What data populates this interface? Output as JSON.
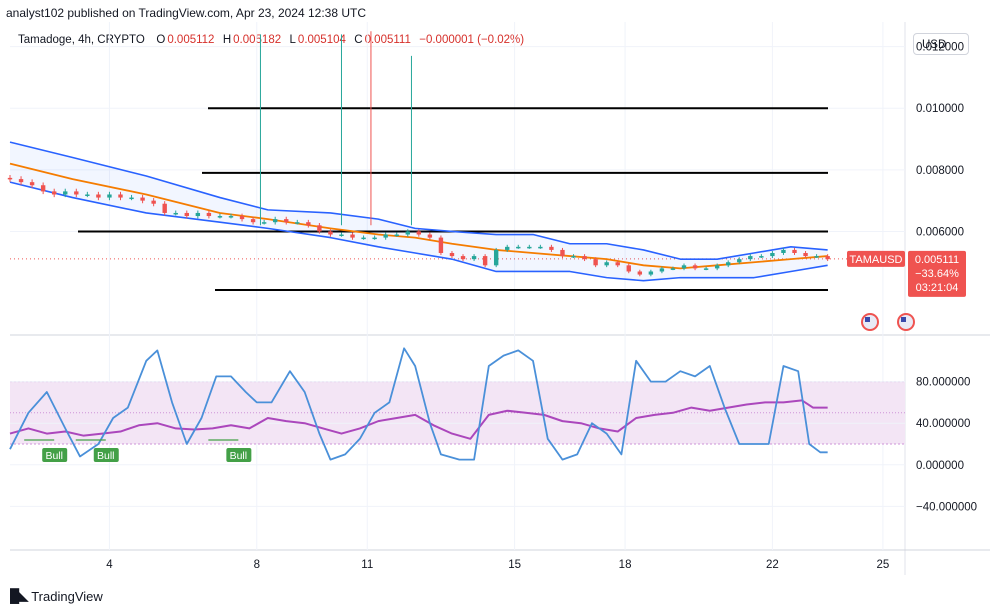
{
  "header": {
    "published": "analyst102 published on TradingView.com, Apr 23, 2024 12:38 UTC",
    "symbol": "Tamadoge, 4h, CRYPTO",
    "o_label": "O",
    "o_value": "0.005112",
    "h_label": "H",
    "h_value": "0.005182",
    "l_label": "L",
    "l_value": "0.005104",
    "c_label": "C",
    "c_value": "0.005111",
    "change": "−0.000001 (−0.02%)"
  },
  "currency_button": "USD",
  "price_tag": {
    "symbol": "TAMAUSD",
    "price": "0.005111",
    "change_pct": "−33.64%",
    "countdown": "03:21:04"
  },
  "footer": {
    "brand": "TradingView"
  },
  "colors": {
    "up": "#26a69a",
    "down": "#ef5350",
    "bb": "#2962ff",
    "ma": "#f57c00",
    "k": "#4a90d9",
    "d": "#ab47bc",
    "band_fill": "#f3e5f5"
  },
  "chart_data": [
    {
      "type": "candlestick",
      "title": "Tamadoge, 4h, CRYPTO",
      "y_axis_ticks": [
        "0.012000",
        "0.010000",
        "0.008000",
        "0.006000"
      ],
      "ylim": [
        0.0028,
        0.0128
      ],
      "x_tick_labels": [
        "4",
        "8",
        "11",
        "15",
        "18",
        "22",
        "25"
      ],
      "x_tick_days": [
        4,
        8,
        11,
        15,
        18,
        22,
        25
      ],
      "x_range_days": [
        1.3,
        25.6
      ],
      "horizontal_levels": [
        0.01,
        0.0079,
        0.006,
        0.0041
      ],
      "last_close": 0.005111,
      "grid": true,
      "bollinger": {
        "upper": [
          [
            1.3,
            0.0089
          ],
          [
            3,
            0.0084
          ],
          [
            5,
            0.0078
          ],
          [
            7,
            0.0071
          ],
          [
            8.3,
            0.0067
          ],
          [
            10,
            0.0066
          ],
          [
            11.3,
            0.0064
          ],
          [
            12.3,
            0.0061
          ],
          [
            13.3,
            0.006
          ],
          [
            14.5,
            0.0059
          ],
          [
            15.5,
            0.0059
          ],
          [
            16.5,
            0.0056
          ],
          [
            17.5,
            0.0056
          ],
          [
            18.5,
            0.0054
          ],
          [
            19.5,
            0.0051
          ],
          [
            20.5,
            0.0051
          ],
          [
            21.5,
            0.0053
          ],
          [
            22.5,
            0.0055
          ],
          [
            23.5,
            0.0054
          ]
        ],
        "middle": [
          [
            1.3,
            0.0082
          ],
          [
            3,
            0.0077
          ],
          [
            5,
            0.0072
          ],
          [
            7,
            0.0066
          ],
          [
            8.3,
            0.0064
          ],
          [
            10,
            0.0061
          ],
          [
            11.3,
            0.0059
          ],
          [
            12.3,
            0.0058
          ],
          [
            13.3,
            0.0056
          ],
          [
            14.5,
            0.0054
          ],
          [
            15.5,
            0.0053
          ],
          [
            16.5,
            0.0052
          ],
          [
            17.5,
            0.0051
          ],
          [
            18.5,
            0.0049
          ],
          [
            19.5,
            0.0048
          ],
          [
            20.5,
            0.0049
          ],
          [
            21.5,
            0.005
          ],
          [
            22.5,
            0.0051
          ],
          [
            23.5,
            0.0052
          ]
        ],
        "lower": [
          [
            1.3,
            0.0076
          ],
          [
            3,
            0.0071
          ],
          [
            5,
            0.0066
          ],
          [
            7,
            0.0063
          ],
          [
            8.3,
            0.0061
          ],
          [
            10,
            0.0058
          ],
          [
            11.3,
            0.0055
          ],
          [
            12.3,
            0.0053
          ],
          [
            13.3,
            0.0051
          ],
          [
            14.5,
            0.0047
          ],
          [
            15.5,
            0.0047
          ],
          [
            16.5,
            0.0047
          ],
          [
            17.5,
            0.0045
          ],
          [
            18.5,
            0.0044
          ],
          [
            19.5,
            0.0045
          ],
          [
            20.5,
            0.0045
          ],
          [
            21.5,
            0.0045
          ],
          [
            22.5,
            0.0047
          ],
          [
            23.5,
            0.0049
          ]
        ]
      },
      "closes": [
        [
          1.3,
          0.0077
        ],
        [
          1.6,
          0.0076
        ],
        [
          1.9,
          0.0075
        ],
        [
          2.2,
          0.0073
        ],
        [
          2.5,
          0.0072
        ],
        [
          2.8,
          0.0073
        ],
        [
          3.1,
          0.0072
        ],
        [
          3.4,
          0.0072
        ],
        [
          3.7,
          0.0071
        ],
        [
          4.0,
          0.0072
        ],
        [
          4.3,
          0.0071
        ],
        [
          4.6,
          0.0071
        ],
        [
          4.9,
          0.007
        ],
        [
          5.2,
          0.0069
        ],
        [
          5.5,
          0.0066
        ],
        [
          5.8,
          0.0066
        ],
        [
          6.1,
          0.0065
        ],
        [
          6.4,
          0.0066
        ],
        [
          6.7,
          0.0065
        ],
        [
          7.0,
          0.0065
        ],
        [
          7.3,
          0.0065
        ],
        [
          7.6,
          0.0064
        ],
        [
          7.9,
          0.0063
        ],
        [
          8.2,
          0.0063
        ],
        [
          8.5,
          0.0064
        ],
        [
          8.8,
          0.0063
        ],
        [
          9.1,
          0.0063
        ],
        [
          9.4,
          0.0062
        ],
        [
          9.7,
          0.006
        ],
        [
          10.0,
          0.0059
        ],
        [
          10.3,
          0.0059
        ],
        [
          10.6,
          0.0058
        ],
        [
          10.9,
          0.0058
        ],
        [
          11.2,
          0.0058
        ],
        [
          11.5,
          0.0059
        ],
        [
          11.8,
          0.0059
        ],
        [
          12.1,
          0.006
        ],
        [
          12.4,
          0.0059
        ],
        [
          12.7,
          0.0058
        ],
        [
          13.0,
          0.0053
        ],
        [
          13.3,
          0.0052
        ],
        [
          13.6,
          0.0051
        ],
        [
          13.9,
          0.0052
        ],
        [
          14.2,
          0.0049
        ],
        [
          14.5,
          0.0054
        ],
        [
          14.8,
          0.0055
        ],
        [
          15.1,
          0.0055
        ],
        [
          15.4,
          0.0055
        ],
        [
          15.7,
          0.0055
        ],
        [
          16.0,
          0.0054
        ],
        [
          16.3,
          0.0052
        ],
        [
          16.6,
          0.0052
        ],
        [
          16.9,
          0.0051
        ],
        [
          17.2,
          0.0049
        ],
        [
          17.5,
          0.005
        ],
        [
          17.8,
          0.0049
        ],
        [
          18.1,
          0.0047
        ],
        [
          18.4,
          0.0046
        ],
        [
          18.7,
          0.0047
        ],
        [
          19.0,
          0.0048
        ],
        [
          19.3,
          0.0048
        ],
        [
          19.6,
          0.0049
        ],
        [
          19.9,
          0.0048
        ],
        [
          20.2,
          0.0048
        ],
        [
          20.5,
          0.0049
        ],
        [
          20.8,
          0.005
        ],
        [
          21.1,
          0.0051
        ],
        [
          21.4,
          0.0052
        ],
        [
          21.7,
          0.0052
        ],
        [
          22.0,
          0.0053
        ],
        [
          22.3,
          0.0054
        ],
        [
          22.6,
          0.0053
        ],
        [
          22.9,
          0.0052
        ],
        [
          23.2,
          0.0052
        ],
        [
          23.5,
          0.0051
        ]
      ],
      "wicks": [
        {
          "day": 8.1,
          "high": 0.0124,
          "color": "up"
        },
        {
          "day": 10.3,
          "high": 0.0124,
          "color": "up"
        },
        {
          "day": 11.1,
          "high": 0.0125,
          "color": "down"
        },
        {
          "day": 12.2,
          "high": 0.0117,
          "color": "up"
        }
      ]
    },
    {
      "type": "line",
      "title": "Stochastic RSI / RSI",
      "y_axis_ticks": [
        "80.000000",
        "40.000000",
        "0.000000",
        "−40.000000"
      ],
      "ylim": [
        -80,
        120
      ],
      "band": [
        20,
        80
      ],
      "midline": 50,
      "labels": [
        {
          "day": 2.5,
          "text": "Bull"
        },
        {
          "day": 3.9,
          "text": "Bull"
        },
        {
          "day": 7.5,
          "text": "Bull"
        }
      ],
      "series": [
        {
          "values": [
            [
              1.3,
              15
            ],
            [
              1.8,
              50
            ],
            [
              2.3,
              70
            ],
            [
              2.8,
              35
            ],
            [
              3.2,
              8
            ],
            [
              3.7,
              20
            ],
            [
              4.1,
              45
            ],
            [
              4.5,
              55
            ],
            [
              5.0,
              100
            ],
            [
              5.3,
              110
            ],
            [
              5.7,
              60
            ],
            [
              6.1,
              20
            ],
            [
              6.5,
              45
            ],
            [
              6.9,
              85
            ],
            [
              7.3,
              85
            ],
            [
              7.7,
              70
            ],
            [
              8.0,
              60
            ],
            [
              8.4,
              60
            ],
            [
              8.9,
              90
            ],
            [
              9.3,
              70
            ],
            [
              9.7,
              30
            ],
            [
              10.0,
              5
            ],
            [
              10.4,
              10
            ],
            [
              10.8,
              25
            ],
            [
              11.2,
              50
            ],
            [
              11.6,
              60
            ],
            [
              12.0,
              112
            ],
            [
              12.3,
              95
            ],
            [
              12.7,
              40
            ],
            [
              13.0,
              10
            ],
            [
              13.5,
              5
            ],
            [
              13.9,
              5
            ],
            [
              14.3,
              95
            ],
            [
              14.7,
              105
            ],
            [
              15.1,
              110
            ],
            [
              15.5,
              100
            ],
            [
              15.9,
              25
            ],
            [
              16.3,
              5
            ],
            [
              16.7,
              10
            ],
            [
              17.1,
              40
            ],
            [
              17.5,
              30
            ],
            [
              17.9,
              10
            ],
            [
              18.3,
              100
            ],
            [
              18.7,
              80
            ],
            [
              19.1,
              80
            ],
            [
              19.5,
              90
            ],
            [
              19.9,
              85
            ],
            [
              20.3,
              95
            ],
            [
              20.7,
              55
            ],
            [
              21.1,
              20
            ],
            [
              21.5,
              20
            ],
            [
              21.9,
              20
            ],
            [
              22.3,
              95
            ],
            [
              22.7,
              90
            ],
            [
              23.0,
              20
            ],
            [
              23.3,
              12
            ],
            [
              23.5,
              12
            ]
          ]
        },
        {
          "values": [
            [
              1.3,
              30
            ],
            [
              1.8,
              35
            ],
            [
              2.3,
              30
            ],
            [
              2.8,
              32
            ],
            [
              3.3,
              28
            ],
            [
              3.8,
              30
            ],
            [
              4.3,
              32
            ],
            [
              4.8,
              38
            ],
            [
              5.3,
              40
            ],
            [
              5.8,
              35
            ],
            [
              6.3,
              34
            ],
            [
              6.8,
              35
            ],
            [
              7.3,
              38
            ],
            [
              7.8,
              35
            ],
            [
              8.3,
              45
            ],
            [
              8.8,
              42
            ],
            [
              9.3,
              40
            ],
            [
              9.8,
              35
            ],
            [
              10.3,
              30
            ],
            [
              10.8,
              35
            ],
            [
              11.3,
              42
            ],
            [
              11.8,
              45
            ],
            [
              12.3,
              48
            ],
            [
              12.8,
              38
            ],
            [
              13.3,
              30
            ],
            [
              13.8,
              25
            ],
            [
              14.3,
              48
            ],
            [
              14.8,
              52
            ],
            [
              15.3,
              50
            ],
            [
              15.8,
              48
            ],
            [
              16.3,
              42
            ],
            [
              16.8,
              40
            ],
            [
              17.3,
              35
            ],
            [
              17.8,
              32
            ],
            [
              18.3,
              45
            ],
            [
              18.8,
              48
            ],
            [
              19.3,
              50
            ],
            [
              19.8,
              55
            ],
            [
              20.3,
              52
            ],
            [
              20.8,
              55
            ],
            [
              21.3,
              58
            ],
            [
              21.8,
              60
            ],
            [
              22.3,
              60
            ],
            [
              22.8,
              62
            ],
            [
              23.1,
              55
            ],
            [
              23.5,
              55
            ]
          ]
        }
      ]
    }
  ]
}
